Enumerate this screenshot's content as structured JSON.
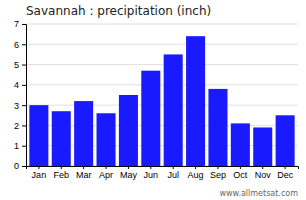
{
  "chart_data": {
    "type": "bar",
    "title": "Savannah : precipitation (inch)",
    "categories": [
      "Jan",
      "Feb",
      "Mar",
      "Apr",
      "May",
      "Jun",
      "Jul",
      "Aug",
      "Sep",
      "Oct",
      "Nov",
      "Dec"
    ],
    "values": [
      3.0,
      2.7,
      3.2,
      2.6,
      3.5,
      4.7,
      5.5,
      6.4,
      3.8,
      2.1,
      1.9,
      2.5
    ],
    "color": "#1a1aff",
    "ylim": [
      0,
      7
    ],
    "yticks": [
      0,
      1,
      2,
      3,
      4,
      5,
      6,
      7
    ],
    "grid": true,
    "annotations": [
      "www.allmetsat.com"
    ]
  }
}
